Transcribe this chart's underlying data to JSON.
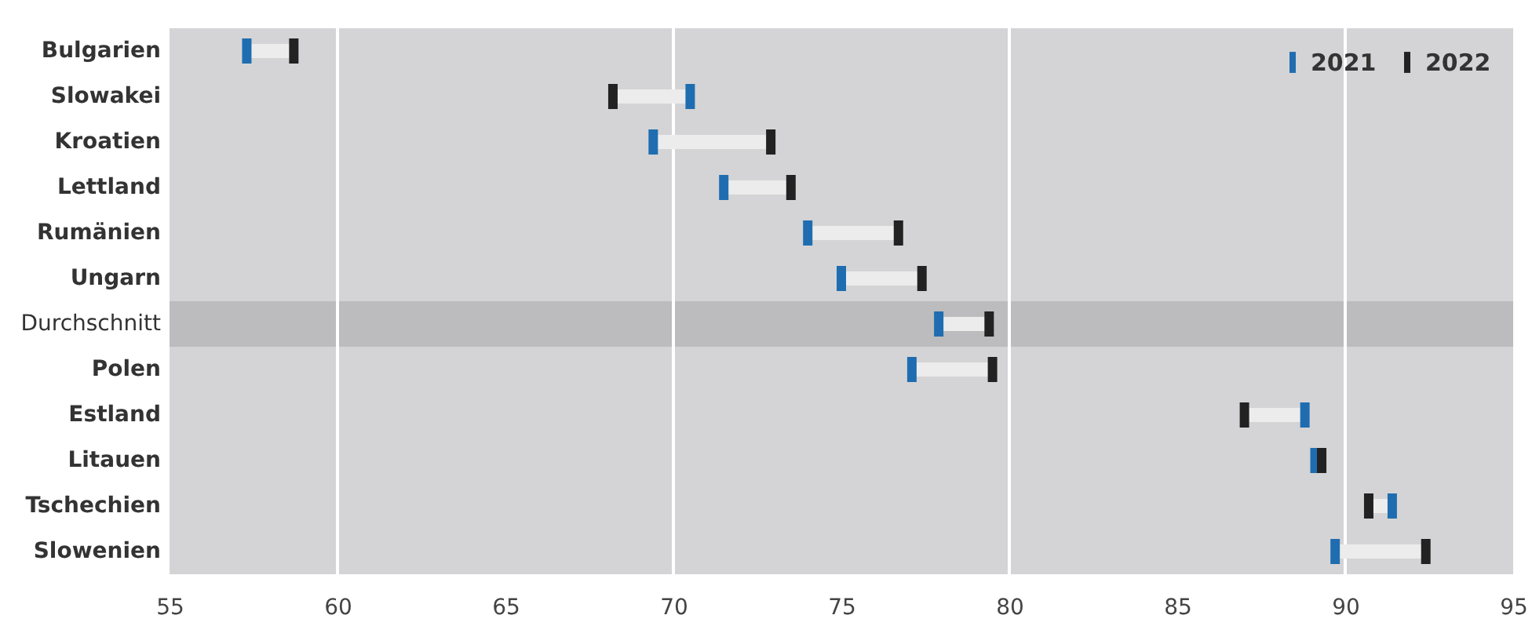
{
  "chart_data": {
    "type": "scatter",
    "categories": [
      "Bulgarien",
      "Slowakei",
      "Kroatien",
      "Lettland",
      "Rumänien",
      "Ungarn",
      "Durchschnitt",
      "Polen",
      "Estland",
      "Litauen",
      "Tschechien",
      "Slowenien"
    ],
    "series": [
      {
        "name": "2021",
        "color": "#1f6db0",
        "values": [
          57.3,
          70.5,
          69.4,
          71.5,
          74.0,
          75.0,
          77.9,
          77.1,
          88.8,
          89.1,
          91.4,
          89.7
        ]
      },
      {
        "name": "2022",
        "color": "#222222",
        "values": [
          58.7,
          68.2,
          72.9,
          73.5,
          76.7,
          77.4,
          79.4,
          79.5,
          87.0,
          89.3,
          90.7,
          92.4
        ]
      }
    ],
    "orientation": "horizontal",
    "xlim": [
      55,
      95
    ],
    "xticks": [
      55,
      60,
      65,
      70,
      75,
      80,
      85,
      90,
      95
    ],
    "grid": "x",
    "legend": "top right",
    "bands": [
      {
        "axis": "y",
        "from": "Durchschnitt",
        "to": "Durchschnitt",
        "color": "#bcbcbe"
      }
    ]
  }
}
